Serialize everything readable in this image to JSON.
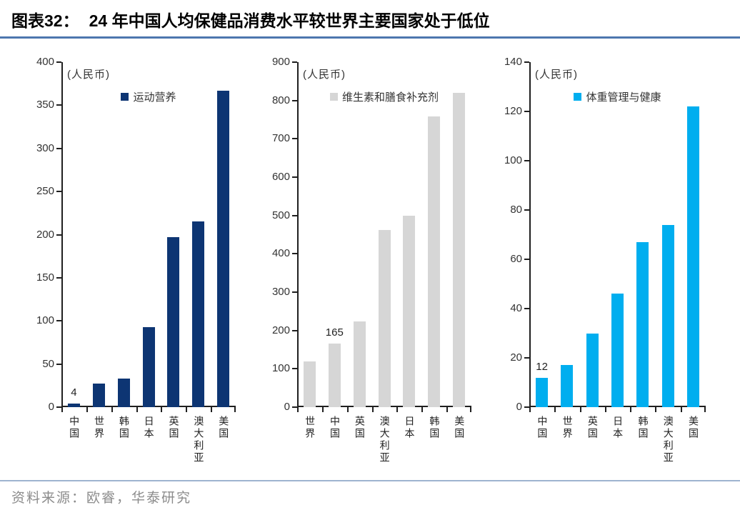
{
  "header": {
    "tag": "图表32：",
    "title": "24 年中国人均保健品消费水平较世界主要国家处于低位"
  },
  "footer": {
    "source_label": "资料来源：欧睿，华泰研究"
  },
  "colors": {
    "title_underline": "#4d77ae",
    "footer_line": "#9eb4d0",
    "source_text": "#8c8c8c",
    "axis": "#1f1f1f",
    "navy": "#0d3573",
    "gray": "#d6d6d6",
    "azure": "#00aeef"
  },
  "chart_data": [
    {
      "type": "bar",
      "legend": "运动营养",
      "unit": "(人民币)",
      "color": "#0d3573",
      "categories": [
        "中国",
        "世界",
        "韩国",
        "日本",
        "英国",
        "澳大利亚",
        "美国"
      ],
      "values": [
        4,
        27,
        33,
        93,
        197,
        215,
        367
      ],
      "data_labels": [
        {
          "index": 0,
          "text": "4"
        }
      ],
      "ylim": [
        0,
        400
      ],
      "ytick_step": 50,
      "grid": false,
      "legend_position": "top-center"
    },
    {
      "type": "bar",
      "legend": "维生素和膳食补充剂",
      "unit": "(人民币)",
      "color": "#d6d6d6",
      "categories": [
        "世界",
        "中国",
        "英国",
        "澳大利亚",
        "日本",
        "韩国",
        "美国"
      ],
      "values": [
        120,
        165,
        223,
        463,
        500,
        758,
        820
      ],
      "data_labels": [
        {
          "index": 1,
          "text": "165"
        }
      ],
      "ylim": [
        0,
        900
      ],
      "ytick_step": 100,
      "grid": false,
      "legend_position": "top-center"
    },
    {
      "type": "bar",
      "legend": "体重管理与健康",
      "unit": "(人民币)",
      "color": "#00aeef",
      "categories": [
        "中国",
        "世界",
        "英国",
        "日本",
        "韩国",
        "澳大利亚",
        "美国"
      ],
      "values": [
        12,
        17,
        30,
        46,
        67,
        74,
        122
      ],
      "data_labels": [
        {
          "index": 0,
          "text": "12"
        }
      ],
      "ylim": [
        0,
        140
      ],
      "ytick_step": 20,
      "grid": false,
      "legend_position": "top-center"
    }
  ]
}
